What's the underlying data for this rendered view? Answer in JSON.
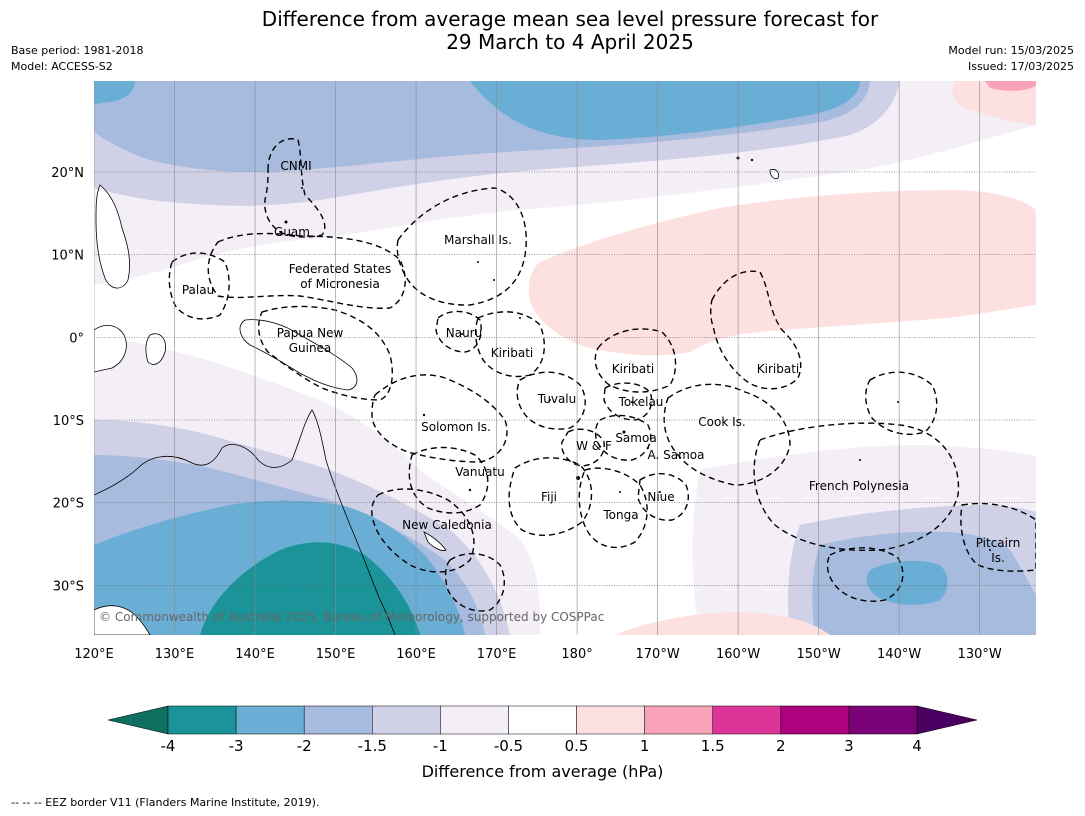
{
  "header": {
    "title_line1": "Difference from average mean sea level pressure forecast for",
    "title_line2": "29 March to 4 April 2025",
    "base_period": "Base period: 1981-2018",
    "model": "Model: ACCESS-S2",
    "model_run": "Model run: 15/03/2025",
    "issued": "Issued: 17/03/2025"
  },
  "map": {
    "extent_lon": [
      120,
      237
    ],
    "extent_lat": [
      -36,
      31
    ],
    "lon_ticks": [
      "120°E",
      "130°E",
      "140°E",
      "150°E",
      "160°E",
      "170°E",
      "180°",
      "170°W",
      "160°W",
      "150°W",
      "140°W",
      "130°W"
    ],
    "lat_ticks": [
      "20°N",
      "10°N",
      "0°",
      "10°S",
      "20°S",
      "30°S"
    ],
    "place_labels": [
      {
        "name": "CNMI"
      },
      {
        "name": "Guam"
      },
      {
        "name": "Marshall Is."
      },
      {
        "name": "Federated States"
      },
      {
        "name": "of Micronesia"
      },
      {
        "name": "Palau"
      },
      {
        "name": "Papua New"
      },
      {
        "name": "Guinea"
      },
      {
        "name": "Nauru"
      },
      {
        "name": "Kiribati"
      },
      {
        "name": "Kiribati"
      },
      {
        "name": "Kiribati"
      },
      {
        "name": "Tuvalu"
      },
      {
        "name": "Tokelau"
      },
      {
        "name": "Cook Is."
      },
      {
        "name": "Solomon Is."
      },
      {
        "name": "Samoa"
      },
      {
        "name": "W & F"
      },
      {
        "name": "A. Samoa"
      },
      {
        "name": "Vanuatu"
      },
      {
        "name": "Fiji"
      },
      {
        "name": "Niue"
      },
      {
        "name": "Tonga"
      },
      {
        "name": "French Polynesia"
      },
      {
        "name": "New Caledonia"
      },
      {
        "name": "Pitcairn"
      },
      {
        "name": "Is."
      }
    ],
    "copyright": "© Commonwealth of Australia 2025, Bureau of Meteorology, supported by COSPPac"
  },
  "colorbar": {
    "ticks": [
      "-4",
      "-3",
      "-2",
      "-1.5",
      "-1",
      "-0.5",
      "0.5",
      "1",
      "1.5",
      "2",
      "3",
      "4"
    ],
    "low_color": "#0e7060",
    "high_color": "#4a0060",
    "colors": [
      "#1b9499",
      "#6aaed6",
      "#a6bbdd",
      "#d0d1e6",
      "#f4eef6",
      "#ffffff",
      "#fde0e0",
      "#f9a3bb",
      "#dd3497",
      "#ae017e",
      "#7a0177"
    ],
    "label": "Difference from average (hPa)"
  },
  "footer": {
    "legend_note": "--  --  -- EEZ border V11 (Flanders Marine Institute, 2019)."
  }
}
